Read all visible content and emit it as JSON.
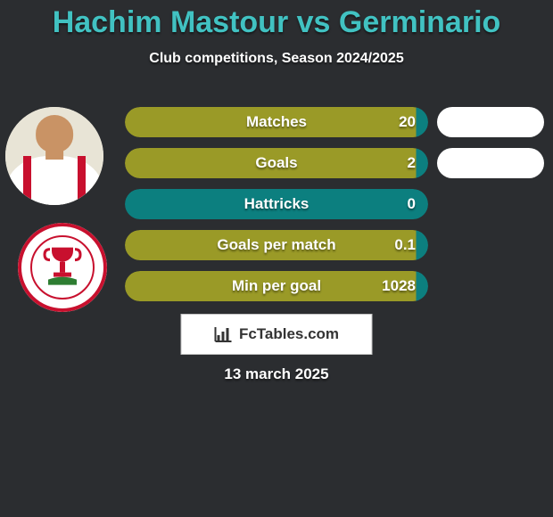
{
  "title": {
    "text": "Hachim Mastour vs Germinario",
    "color": "#41c2c2",
    "fontsize": 34
  },
  "subtitle": {
    "text": "Club competitions, Season 2024/2025",
    "color": "#ffffff",
    "fontsize": 16
  },
  "background_color": "#2b2d30",
  "row_style": {
    "height": 34,
    "radius": 17,
    "label_fontsize": 17,
    "value_fontsize": 17
  },
  "rows": [
    {
      "label": "Matches",
      "value": "20",
      "fill": "#9a9a27",
      "cap_right_color": "#0c7f7f",
      "has_compare_pill": true
    },
    {
      "label": "Goals",
      "value": "2",
      "fill": "#9a9a27",
      "cap_right_color": "#0c7f7f",
      "has_compare_pill": true
    },
    {
      "label": "Hattricks",
      "value": "0",
      "fill": "#0c7f7f",
      "cap_right_color": null,
      "has_compare_pill": false
    },
    {
      "label": "Goals per match",
      "value": "0.1",
      "fill": "#9a9a27",
      "cap_right_color": "#0c7f7f",
      "has_compare_pill": false
    },
    {
      "label": "Min per goal",
      "value": "1028",
      "fill": "#9a9a27",
      "cap_right_color": "#0c7f7f",
      "has_compare_pill": false
    }
  ],
  "compare_pill_color": "#ffffff",
  "logo": {
    "text": "FcTables.com",
    "text_color": "#333333",
    "bg": "#ffffff"
  },
  "date": "13 march 2025",
  "badge": {
    "ring_color": "#c8102e",
    "bg": "#ffffff"
  }
}
